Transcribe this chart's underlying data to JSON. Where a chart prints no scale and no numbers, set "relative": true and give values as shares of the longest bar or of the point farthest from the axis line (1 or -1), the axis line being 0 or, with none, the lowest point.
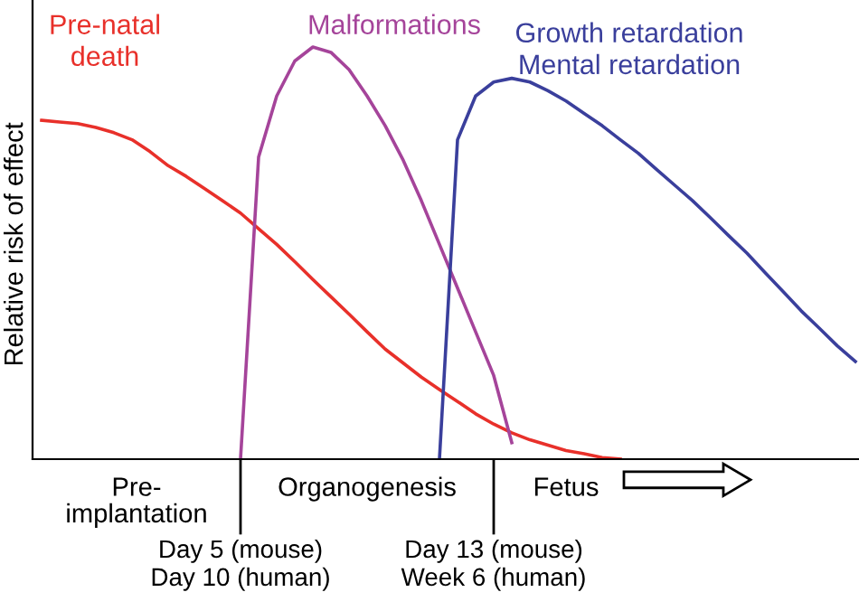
{
  "chart_data": {
    "type": "line",
    "relative": true,
    "ylabel": "Relative risk of effect",
    "categories": [
      null,
      null,
      null,
      null,
      null,
      null,
      null,
      null,
      null,
      null,
      null,
      "Day 5 (mouse)\nDay 10 (human)",
      null,
      null,
      null,
      null,
      null,
      null,
      null,
      null,
      null,
      null,
      null,
      null,
      null,
      "Day 13 (mouse)\nWeek 6 (human)",
      null,
      null,
      null,
      null,
      null,
      null,
      null,
      null,
      null,
      null,
      null,
      null,
      null,
      null,
      null,
      null,
      null,
      null,
      null,
      null
    ],
    "series": [
      {
        "name": "Pre-natal\ndeath",
        "color": "#e8302a",
        "values": [
          0.822,
          0.818,
          0.814,
          0.805,
          0.792,
          0.775,
          0.746,
          0.712,
          0.686,
          0.657,
          0.627,
          0.597,
          0.559,
          0.521,
          0.479,
          0.436,
          0.394,
          0.352,
          0.309,
          0.267,
          0.233,
          0.199,
          0.169,
          0.14,
          0.11,
          0.085,
          0.064,
          0.047,
          0.034,
          0.021,
          0.013,
          0.004,
          0,
          null,
          null,
          null,
          null,
          null,
          null,
          null,
          null,
          null,
          null,
          null,
          null,
          null
        ]
      },
      {
        "name": "Malformations",
        "color": "#a5449a",
        "values": [
          null,
          null,
          null,
          null,
          null,
          null,
          null,
          null,
          null,
          null,
          null,
          0,
          0.733,
          0.881,
          0.966,
          1.0,
          0.987,
          0.945,
          0.881,
          0.809,
          0.725,
          0.627,
          0.521,
          0.415,
          0.309,
          0.203,
          0.04,
          null,
          null,
          null,
          null,
          null,
          null,
          null,
          null,
          null,
          null,
          null,
          null,
          null,
          null,
          null,
          null,
          null,
          null,
          null
        ]
      },
      {
        "name": "Growth retardation\nMental retardation",
        "color": "#3a3f9c",
        "values": [
          null,
          null,
          null,
          null,
          null,
          null,
          null,
          null,
          null,
          null,
          null,
          null,
          null,
          null,
          null,
          null,
          null,
          null,
          null,
          null,
          null,
          null,
          0,
          0.775,
          0.881,
          0.915,
          0.924,
          0.915,
          0.894,
          0.869,
          0.839,
          0.809,
          0.775,
          0.742,
          0.703,
          0.665,
          0.627,
          0.585,
          0.542,
          0.5,
          0.453,
          0.407,
          0.36,
          0.318,
          0.275,
          0.237
        ]
      }
    ],
    "annotations": [
      "Pre-\nimplantation",
      "Organogenesis",
      "Fetus"
    ],
    "grid": false
  }
}
